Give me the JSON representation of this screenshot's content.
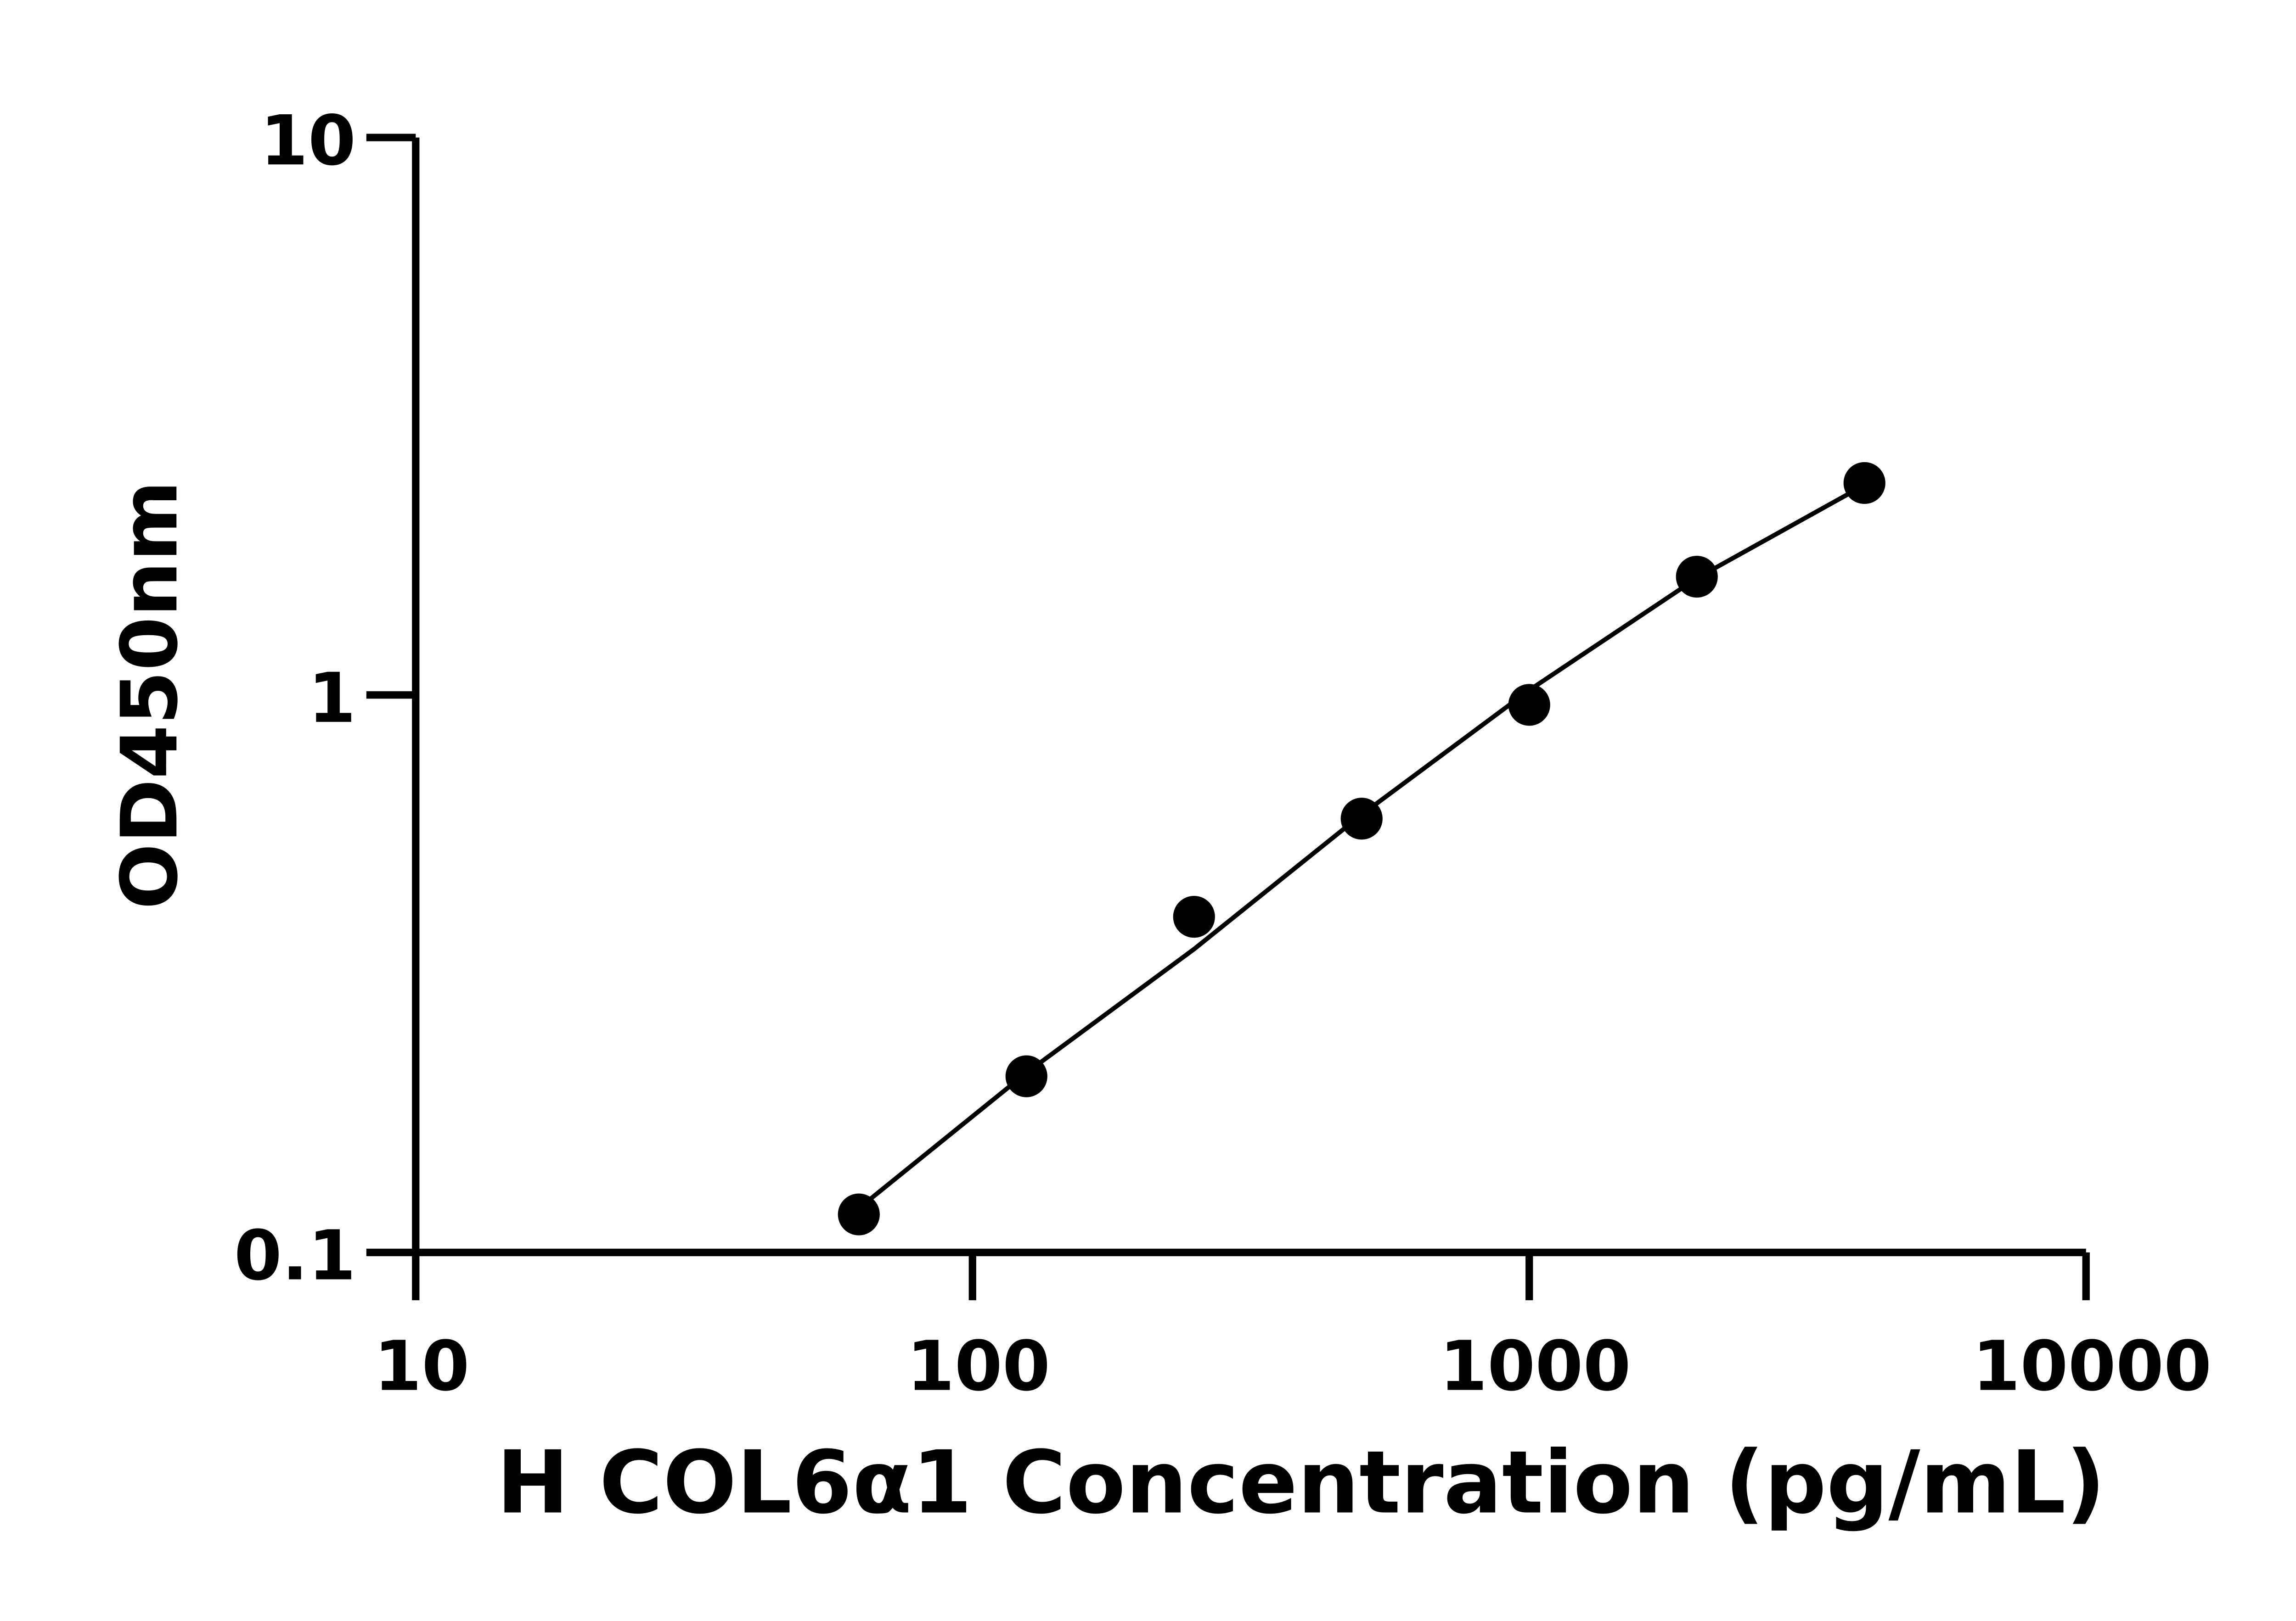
{
  "chart_data": {
    "type": "scatter",
    "x_label": "H COL6α1 Concentration (pg/mL)",
    "y_label": "OD450nm",
    "x_log": true,
    "y_log": true,
    "color": "#000000",
    "x": [
      62.5,
      125,
      250,
      500,
      1000,
      2000,
      4000
    ],
    "values": [
      0.117,
      0.207,
      0.4,
      0.6,
      0.96,
      1.63,
      2.4
    ],
    "fit": {
      "x": [
        62.5,
        125,
        250,
        500,
        1000,
        2000,
        4000
      ],
      "values": [
        0.12,
        0.21,
        0.35,
        0.61,
        1.02,
        1.62,
        2.38
      ]
    },
    "xlim": [
      10,
      10000
    ],
    "ylim": [
      0.1,
      10
    ],
    "xticks": [
      10,
      100,
      1000,
      10000
    ],
    "yticks": [
      0.1,
      1,
      10
    ]
  }
}
